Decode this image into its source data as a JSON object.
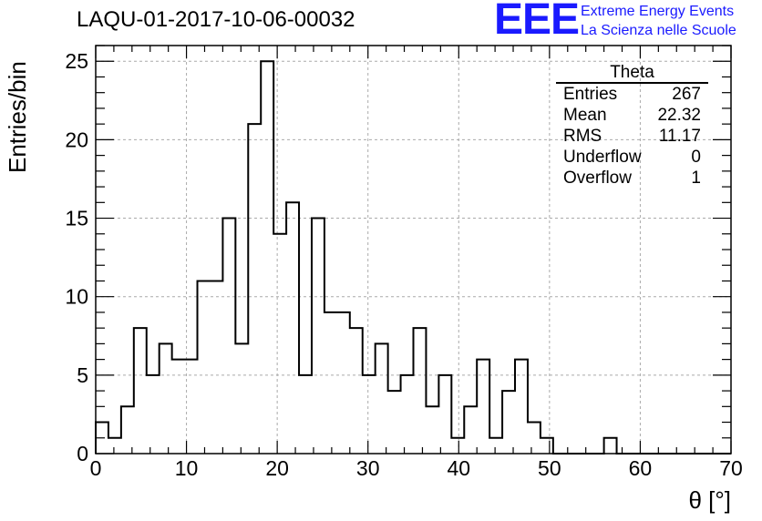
{
  "header": {
    "title": "LAQU-01-2017-10-06-00032",
    "logo_text": "EEE",
    "logo_line1": "Extreme Energy Events",
    "logo_line2": "La Scienza nelle Scuole"
  },
  "stats_box": {
    "name": "Theta",
    "rows": [
      {
        "label": "Entries",
        "value": "267"
      },
      {
        "label": "Mean",
        "value": "22.32"
      },
      {
        "label": "RMS",
        "value": "11.17"
      },
      {
        "label": "Underflow",
        "value": "0"
      },
      {
        "label": "Overflow",
        "value": "1"
      }
    ]
  },
  "chart_data": {
    "type": "bar",
    "style": "step-histogram",
    "xlabel": "θ [°]",
    "ylabel": "Entries/bin",
    "xlim": [
      0,
      70
    ],
    "ylim": [
      0,
      26
    ],
    "bin_width": 1.4,
    "x_ticks": [
      0,
      10,
      20,
      30,
      40,
      50,
      60,
      70
    ],
    "y_ticks": [
      0,
      5,
      10,
      15,
      20,
      25
    ],
    "grid": true,
    "values": [
      2,
      1,
      3,
      8,
      5,
      7,
      6,
      6,
      11,
      11,
      15,
      7,
      21,
      25,
      14,
      16,
      5,
      15,
      9,
      9,
      8,
      5,
      7,
      4,
      5,
      8,
      3,
      5,
      1,
      3,
      6,
      1,
      4,
      6,
      2,
      1,
      0,
      0,
      0,
      0,
      1,
      0,
      0,
      0,
      0,
      0,
      0,
      0,
      0,
      0
    ],
    "line_color": "#000000"
  }
}
